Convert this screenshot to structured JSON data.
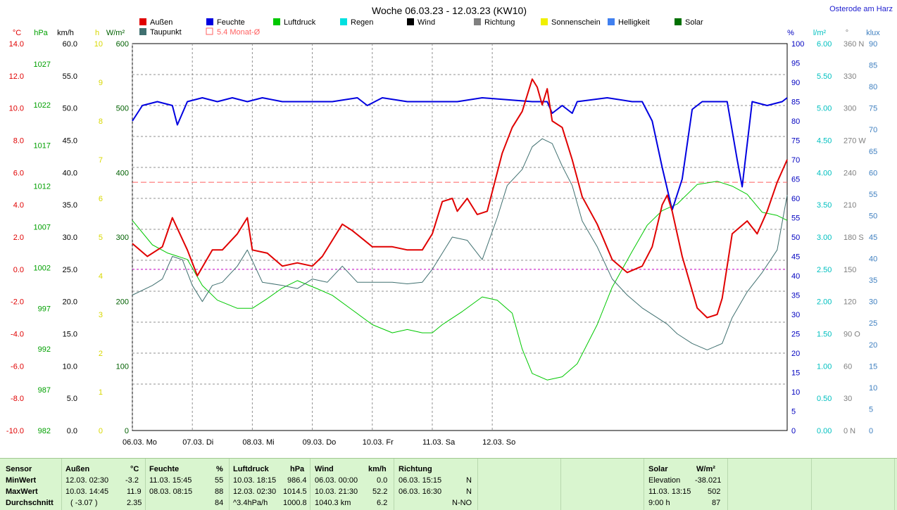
{
  "title": "Woche 06.03.23 - 12.03.23 (KW10)",
  "location": "Osterode am Harz",
  "legend": [
    {
      "label": "Außen",
      "color": "#e00000"
    },
    {
      "label": "Feuchte",
      "color": "#0000e0"
    },
    {
      "label": "Luftdruck",
      "color": "#00c800"
    },
    {
      "label": "Regen",
      "color": "#00e0e0"
    },
    {
      "label": "Wind",
      "color": "#000000"
    },
    {
      "label": "Richtung",
      "color": "#808080"
    },
    {
      "label": "Sonnenschein",
      "color": "#f0f000"
    },
    {
      "label": "Helligkeit",
      "color": "#4080f0"
    },
    {
      "label": "Solar",
      "color": "#007000"
    },
    {
      "label": "Taupunkt",
      "color": "#407070"
    },
    {
      "label": "5.4 Monat-Ø",
      "color": "#ff6060"
    }
  ],
  "axes": {
    "temp": {
      "unit": "°C",
      "color": "#e00000",
      "ticks": [
        "14.0",
        "12.0",
        "10.0",
        "8.0",
        "6.0",
        "4.0",
        "2.0",
        "0.0",
        "-2.0",
        "-4.0",
        "-6.0",
        "-8.0",
        "-10.0"
      ]
    },
    "pressure": {
      "unit": "hPa",
      "color": "#00a000",
      "ticks": [
        "1027",
        "1022",
        "1017",
        "1012",
        "1007",
        "1002",
        "997",
        "992",
        "987",
        "982"
      ]
    },
    "wind": {
      "unit": "km/h",
      "color": "#000000",
      "ticks": [
        "60.0",
        "55.0",
        "50.0",
        "45.0",
        "40.0",
        "35.0",
        "30.0",
        "25.0",
        "20.0",
        "15.0",
        "10.0",
        "5.0",
        "0.0"
      ]
    },
    "sun": {
      "unit": "h",
      "color": "#d8d800",
      "ticks": [
        "10",
        "9",
        "8",
        "7",
        "6",
        "5",
        "4",
        "3",
        "2",
        "1",
        "0"
      ]
    },
    "solar": {
      "unit": "W/m²",
      "color": "#006000",
      "ticks": [
        "600",
        "500",
        "400",
        "300",
        "200",
        "100",
        "0"
      ]
    },
    "humidity": {
      "unit": "%",
      "color": "#0000c0",
      "ticks": [
        "100",
        "95",
        "90",
        "85",
        "80",
        "75",
        "70",
        "65",
        "60",
        "55",
        "50",
        "45",
        "40",
        "35",
        "30",
        "25",
        "20",
        "15",
        "10",
        "5",
        "0"
      ]
    },
    "rain": {
      "unit": "l/m²",
      "color": "#00c0c0",
      "ticks": [
        "6.00",
        "5.50",
        "5.00",
        "4.50",
        "4.00",
        "3.50",
        "3.00",
        "2.50",
        "2.00",
        "1.50",
        "1.00",
        "0.50",
        "0.00"
      ]
    },
    "direction": {
      "unit": "°",
      "color": "#808080",
      "ticks": [
        "360 N",
        "330",
        "300",
        "270 W",
        "240",
        "210",
        "180 S",
        "150",
        "120",
        "90 O",
        "60",
        "30",
        "0 N"
      ]
    },
    "lux": {
      "unit": "klux",
      "color": "#4080c0",
      "ticks": [
        "90",
        "85",
        "80",
        "75",
        "70",
        "65",
        "60",
        "55",
        "50",
        "45",
        "40",
        "35",
        "30",
        "25",
        "20",
        "15",
        "10",
        "5",
        "0"
      ]
    }
  },
  "days": [
    "06.03.  Mo",
    "07.03.  Di",
    "08.03.  Mi",
    "09.03.  Do",
    "10.03.  Fr",
    "11.03.  Sa",
    "12.03.  So"
  ],
  "chart_data": {
    "type": "line",
    "x_unit": "hours since 06.03. 00:00",
    "series": [
      {
        "name": "Außen",
        "unit": "°C",
        "points": [
          [
            0,
            1.6
          ],
          [
            6,
            0.8
          ],
          [
            12,
            1.4
          ],
          [
            16,
            3.2
          ],
          [
            22,
            1.2
          ],
          [
            26,
            -0.4
          ],
          [
            32,
            1.2
          ],
          [
            36,
            1.2
          ],
          [
            42,
            2.2
          ],
          [
            46,
            3.2
          ],
          [
            48,
            1.2
          ],
          [
            54,
            1.0
          ],
          [
            60,
            0.2
          ],
          [
            66,
            0.4
          ],
          [
            72,
            0.2
          ],
          [
            76,
            0.8
          ],
          [
            80,
            1.8
          ],
          [
            84,
            2.8
          ],
          [
            88,
            2.4
          ],
          [
            96,
            1.4
          ],
          [
            104,
            1.4
          ],
          [
            110,
            1.2
          ],
          [
            116,
            1.2
          ],
          [
            120,
            2.2
          ],
          [
            124,
            4.2
          ],
          [
            128,
            4.4
          ],
          [
            130,
            3.6
          ],
          [
            134,
            4.4
          ],
          [
            138,
            3.4
          ],
          [
            142,
            3.6
          ],
          [
            148,
            7.2
          ],
          [
            152,
            8.8
          ],
          [
            156,
            9.8
          ],
          [
            160,
            11.8
          ],
          [
            162,
            11.3
          ],
          [
            164,
            10.2
          ],
          [
            166,
            11.2
          ],
          [
            168,
            9.2
          ],
          [
            172,
            8.8
          ],
          [
            176,
            6.8
          ],
          [
            180,
            4.5
          ],
          [
            186,
            2.8
          ],
          [
            192,
            0.6
          ],
          [
            198,
            -0.2
          ],
          [
            204,
            0.2
          ],
          [
            208,
            1.4
          ],
          [
            212,
            4.0
          ],
          [
            214,
            4.6
          ],
          [
            216,
            3.6
          ],
          [
            220,
            0.8
          ],
          [
            226,
            -2.4
          ],
          [
            230,
            -3.0
          ],
          [
            234,
            -2.8
          ],
          [
            236,
            -1.8
          ],
          [
            240,
            2.2
          ],
          [
            246,
            3.0
          ],
          [
            250,
            2.2
          ],
          [
            254,
            3.6
          ],
          [
            258,
            5.4
          ],
          [
            262,
            6.8
          ]
        ]
      },
      {
        "name": "Taupunkt",
        "unit": "°C",
        "points": [
          [
            0,
            -1.6
          ],
          [
            8,
            -1.0
          ],
          [
            12,
            -0.6
          ],
          [
            16,
            0.8
          ],
          [
            20,
            0.6
          ],
          [
            24,
            -1.0
          ],
          [
            28,
            -2.0
          ],
          [
            32,
            -1.0
          ],
          [
            36,
            -0.8
          ],
          [
            42,
            0.2
          ],
          [
            46,
            1.2
          ],
          [
            52,
            -0.8
          ],
          [
            60,
            -1.0
          ],
          [
            66,
            -1.2
          ],
          [
            72,
            -0.6
          ],
          [
            78,
            -0.8
          ],
          [
            84,
            0.2
          ],
          [
            90,
            -0.8
          ],
          [
            96,
            -0.8
          ],
          [
            104,
            -0.8
          ],
          [
            110,
            -0.9
          ],
          [
            116,
            -0.8
          ],
          [
            120,
            0.0
          ],
          [
            128,
            2.0
          ],
          [
            134,
            1.8
          ],
          [
            140,
            0.6
          ],
          [
            146,
            3.2
          ],
          [
            150,
            5.2
          ],
          [
            156,
            6.2
          ],
          [
            160,
            7.6
          ],
          [
            164,
            8.1
          ],
          [
            168,
            7.8
          ],
          [
            172,
            6.4
          ],
          [
            176,
            5.2
          ],
          [
            180,
            3.0
          ],
          [
            186,
            1.4
          ],
          [
            192,
            -0.6
          ],
          [
            198,
            -1.6
          ],
          [
            204,
            -2.4
          ],
          [
            210,
            -3.0
          ],
          [
            214,
            -3.4
          ],
          [
            218,
            -4.0
          ],
          [
            224,
            -4.6
          ],
          [
            230,
            -5.0
          ],
          [
            236,
            -4.6
          ],
          [
            240,
            -3.0
          ],
          [
            246,
            -1.4
          ],
          [
            252,
            -0.2
          ],
          [
            258,
            1.2
          ],
          [
            262,
            4.6
          ]
        ]
      },
      {
        "name": "Feuchte",
        "unit": "%",
        "points": [
          [
            0,
            80
          ],
          [
            4,
            84
          ],
          [
            10,
            85
          ],
          [
            16,
            84
          ],
          [
            18,
            79
          ],
          [
            22,
            85
          ],
          [
            28,
            86
          ],
          [
            34,
            85
          ],
          [
            40,
            86
          ],
          [
            46,
            85
          ],
          [
            52,
            86
          ],
          [
            60,
            85
          ],
          [
            80,
            85
          ],
          [
            90,
            86
          ],
          [
            94,
            84
          ],
          [
            100,
            86
          ],
          [
            110,
            85
          ],
          [
            130,
            85
          ],
          [
            140,
            86
          ],
          [
            160,
            85
          ],
          [
            166,
            85
          ],
          [
            168,
            82
          ],
          [
            172,
            84
          ],
          [
            176,
            82
          ],
          [
            178,
            85
          ],
          [
            190,
            86
          ],
          [
            200,
            85
          ],
          [
            204,
            85
          ],
          [
            208,
            80
          ],
          [
            212,
            68
          ],
          [
            216,
            57
          ],
          [
            220,
            65
          ],
          [
            224,
            83
          ],
          [
            228,
            85
          ],
          [
            234,
            85
          ],
          [
            238,
            85
          ],
          [
            242,
            70
          ],
          [
            244,
            63
          ],
          [
            248,
            85
          ],
          [
            254,
            84
          ],
          [
            260,
            85
          ],
          [
            262,
            86
          ]
        ]
      },
      {
        "name": "Luftdruck",
        "unit": "hPa",
        "points": [
          [
            0,
            1007.8
          ],
          [
            8,
            1004.8
          ],
          [
            14,
            1003.8
          ],
          [
            22,
            1003.0
          ],
          [
            28,
            999.8
          ],
          [
            34,
            998.0
          ],
          [
            42,
            997.0
          ],
          [
            48,
            997.0
          ],
          [
            54,
            998.2
          ],
          [
            60,
            999.5
          ],
          [
            66,
            1000.4
          ],
          [
            74,
            999.4
          ],
          [
            80,
            998.6
          ],
          [
            88,
            996.8
          ],
          [
            96,
            995.0
          ],
          [
            104,
            994.0
          ],
          [
            110,
            994.4
          ],
          [
            116,
            994.0
          ],
          [
            120,
            994.0
          ],
          [
            124,
            995.0
          ],
          [
            132,
            996.6
          ],
          [
            140,
            998.4
          ],
          [
            146,
            998.0
          ],
          [
            152,
            996.4
          ],
          [
            156,
            992.0
          ],
          [
            160,
            989.0
          ],
          [
            166,
            988.2
          ],
          [
            172,
            988.6
          ],
          [
            178,
            990.2
          ],
          [
            186,
            995.0
          ],
          [
            192,
            999.6
          ],
          [
            200,
            1004.0
          ],
          [
            206,
            1007.2
          ],
          [
            212,
            1009.0
          ],
          [
            218,
            1009.8
          ],
          [
            226,
            1012.2
          ],
          [
            234,
            1012.6
          ],
          [
            240,
            1012.0
          ],
          [
            246,
            1011.0
          ],
          [
            252,
            1008.8
          ],
          [
            258,
            1008.4
          ],
          [
            262,
            1007.8
          ]
        ]
      }
    ]
  },
  "summary": {
    "sensor": {
      "h": "Sensor",
      "r1": "MinWert",
      "r2": "MaxWert",
      "r3": "Durchschnitt"
    },
    "aussen": {
      "h": "Außen",
      "u": "°C",
      "a1": "12.03.  02:30",
      "v1": "-3.2",
      "a2": "10.03.  14:45",
      "v2": "11.9",
      "a3": "( -3.07 )",
      "v3": "2.35"
    },
    "feuchte": {
      "h": "Feuchte",
      "u": "%",
      "a1": "11.03.  15:45",
      "v1": "55",
      "a2": "08.03.  08:15",
      "v2": "88",
      "v3": "84"
    },
    "luftdruck": {
      "h": "Luftdruck",
      "u": "hPa",
      "a1": "10.03.  18:15",
      "v1": "986.4",
      "a2": "12.03.  02:30",
      "v2": "1014.5",
      "a3": "^3.4hPa/h",
      "v3": "1000.8"
    },
    "wind": {
      "h": "Wind",
      "u": "km/h",
      "a1": "06.03.  00:00",
      "v1": "0.0",
      "a2": "10.03.  21:30",
      "v2": "52.2",
      "a3": "1040.3 km",
      "v3": "6.2"
    },
    "richtung": {
      "h": "Richtung",
      "a1": "06.03.  15:15",
      "v1": "N",
      "a2": "06.03.  16:30",
      "v2": "N",
      "v3": "N-NO"
    },
    "solar": {
      "h": "Solar",
      "u": "W/m²",
      "a1": "Elevation",
      "v1": "-38.021",
      "a2": "11.03.  13:15",
      "v2": "502",
      "a3": "9:00 h",
      "v3": "87"
    }
  }
}
